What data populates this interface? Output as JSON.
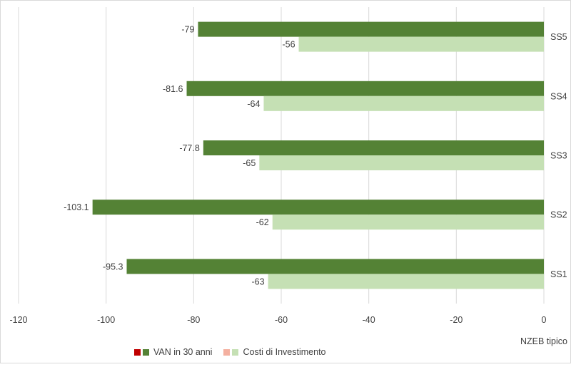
{
  "chart_data": {
    "type": "bar",
    "orientation": "horizontal",
    "categories": [
      "SS1",
      "SS2",
      "SS3",
      "SS4",
      "SS5"
    ],
    "series": [
      {
        "name": "VAN in 30 anni",
        "values": [
          -95.3,
          -103.1,
          -77.8,
          -81.6,
          -79
        ],
        "color": "#548235",
        "legend_marker_color": "#c00000"
      },
      {
        "name": "Costi di Investimento",
        "values": [
          -63,
          -62,
          -65,
          -64,
          -56
        ],
        "color": "#c5e0b4",
        "legend_marker_color": "#f4b0a0"
      }
    ],
    "data_labels": [
      [
        "-95.3",
        "-103.1",
        "-77.8",
        "-81.6",
        "-79"
      ],
      [
        "-63",
        "-62",
        "-65",
        "-64",
        "-56"
      ]
    ],
    "xlim": [
      -120,
      0
    ],
    "x_ticks": [
      -120,
      -100,
      -80,
      -60,
      -40,
      -20,
      0
    ],
    "x_tick_labels": [
      "-120",
      "-100",
      "-80",
      "-60",
      "-40",
      "-20",
      "0"
    ],
    "grid": "vertical",
    "legend_position": "bottom",
    "axis_note": "NZEB tipico",
    "title": "",
    "xlabel": "",
    "ylabel": ""
  }
}
